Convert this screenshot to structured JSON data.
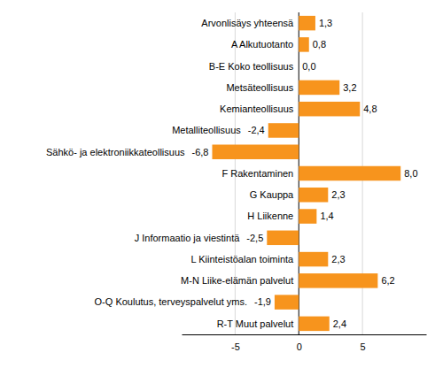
{
  "chart_data": {
    "type": "bar",
    "orientation": "horizontal",
    "categories": [
      "Arvonlisäys yhteensä",
      "A Alkutuotanto",
      "B-E Koko teollisuus",
      "Metsäteollisuus",
      "Kemianteollisuus",
      "Metalliteollisuus",
      "Sähkö- ja elektroniikkateollisuus",
      "F Rakentaminen",
      "G Kauppa",
      "H Liikenne",
      "J Informaatio ja viestintä",
      "L Kiinteistöalan toiminta",
      "M-N Liike-elämän palvelut",
      "O-Q Koulutus, terveyspalvelut yms.",
      "R-T Muut palvelut"
    ],
    "values": [
      1.3,
      0.8,
      0.0,
      3.2,
      4.8,
      -2.4,
      -6.8,
      8.0,
      2.3,
      1.4,
      -2.5,
      2.3,
      6.2,
      -1.9,
      2.4
    ],
    "value_labels": [
      "1,3",
      "0,8",
      "0,0",
      "3,2",
      "4,8",
      "-2,4",
      "-6,8",
      "8,0",
      "2,3",
      "1,4",
      "-2,5",
      "2,3",
      "6,2",
      "-1,9",
      "2,4"
    ],
    "data_labels": true,
    "color": "#f7941d",
    "xlim": [
      -9.2,
      10
    ],
    "xticks": [
      -5,
      0,
      5
    ],
    "grid": true
  }
}
